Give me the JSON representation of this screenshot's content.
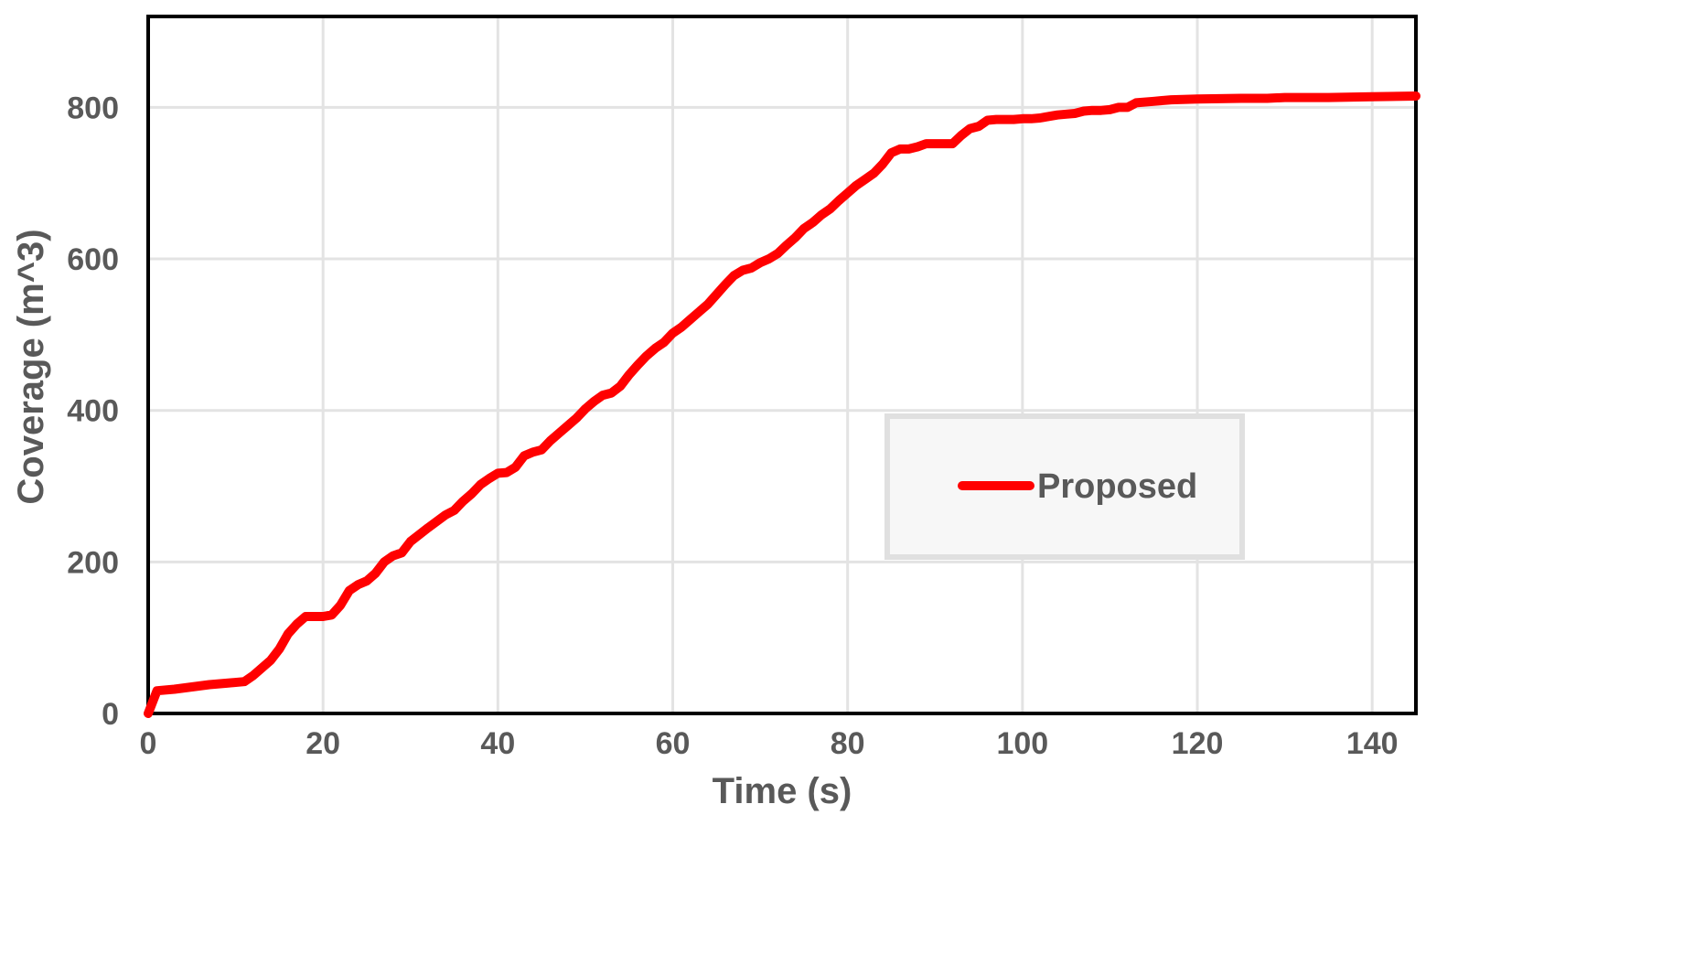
{
  "chart_data": {
    "type": "line",
    "title": "",
    "xlabel": "Time (s)",
    "ylabel": "Coverage (m^3)",
    "xlim": [
      0,
      145
    ],
    "ylim": [
      0,
      920
    ],
    "xticks": [
      0,
      20,
      40,
      60,
      80,
      100,
      120,
      140
    ],
    "yticks": [
      0,
      200,
      400,
      600,
      800
    ],
    "x_tick_labels": [
      "0",
      "20",
      "40",
      "60",
      "80",
      "100",
      "120",
      "140"
    ],
    "y_tick_labels": [
      "0",
      "200",
      "400",
      "600",
      "800"
    ],
    "grid": true,
    "legend_position": "center-right",
    "series": [
      {
        "name": "Proposed",
        "color": "#ff0000",
        "x": [
          0,
          1,
          3,
          5,
          7,
          9,
          11,
          12,
          14,
          15,
          16,
          17,
          18,
          20,
          21,
          22,
          23,
          24,
          25,
          26,
          27,
          28,
          29,
          30,
          32,
          34,
          35,
          36,
          37,
          38,
          39,
          40,
          41,
          42,
          43,
          44,
          45,
          46,
          47,
          48,
          49,
          50,
          51,
          52,
          53,
          54,
          55,
          56,
          57,
          58,
          59,
          60,
          61,
          62,
          63,
          64,
          65,
          66,
          67,
          68,
          69,
          70,
          71,
          72,
          73,
          74,
          75,
          76,
          77,
          78,
          79,
          80,
          81,
          82,
          83,
          84,
          85,
          86,
          87,
          88,
          89,
          90,
          91,
          92,
          93,
          94,
          95,
          96,
          97,
          98,
          99,
          100,
          101,
          102,
          103,
          104,
          105,
          106,
          107,
          108,
          109,
          110,
          111,
          112,
          113,
          115,
          117,
          120,
          125,
          128,
          130,
          135,
          140,
          145
        ],
        "values": [
          0,
          30,
          32,
          35,
          38,
          40,
          42,
          50,
          70,
          85,
          105,
          118,
          128,
          128,
          130,
          143,
          162,
          170,
          175,
          185,
          200,
          208,
          212,
          227,
          245,
          262,
          268,
          280,
          290,
          302,
          310,
          317,
          318,
          325,
          340,
          345,
          348,
          360,
          370,
          380,
          390,
          402,
          412,
          420,
          423,
          432,
          447,
          460,
          472,
          482,
          490,
          502,
          510,
          520,
          530,
          540,
          553,
          566,
          578,
          585,
          588,
          595,
          600,
          607,
          618,
          628,
          640,
          648,
          658,
          666,
          677,
          687,
          697,
          705,
          713,
          725,
          740,
          745,
          745,
          748,
          752,
          752,
          752,
          752,
          763,
          772,
          775,
          783,
          784,
          784,
          784,
          785,
          785,
          786,
          788,
          790,
          791,
          792,
          795,
          796,
          796,
          797,
          800,
          800,
          806,
          808,
          810,
          811,
          812,
          812,
          813,
          813,
          814,
          815
        ]
      }
    ]
  }
}
